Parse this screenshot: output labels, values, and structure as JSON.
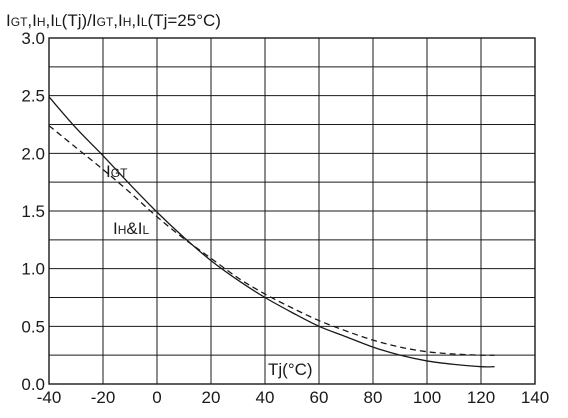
{
  "chart_data": {
    "type": "line",
    "ylabel_parts": [
      {
        "t": "I",
        "sub": false
      },
      {
        "t": "GT",
        "sub": true
      },
      {
        "t": ",I",
        "sub": false
      },
      {
        "t": "H",
        "sub": true
      },
      {
        "t": ",I",
        "sub": false
      },
      {
        "t": "L",
        "sub": true
      },
      {
        "t": "(Tj)/I",
        "sub": false
      },
      {
        "t": "GT",
        "sub": true
      },
      {
        "t": ",I",
        "sub": false
      },
      {
        "t": "H",
        "sub": true
      },
      {
        "t": ",I",
        "sub": false
      },
      {
        "t": "L",
        "sub": true
      },
      {
        "t": "(Tj=25°C)",
        "sub": false
      }
    ],
    "xlabel": "Tj(°C)",
    "xlim": [
      -40,
      140
    ],
    "ylim": [
      0,
      3.0
    ],
    "x_ticks": [
      "-40",
      "-20",
      "0",
      "20",
      "40",
      "60",
      "80",
      "100",
      "120",
      "140"
    ],
    "y_ticks": [
      "0.0",
      "0.5",
      "1.0",
      "1.5",
      "2.0",
      "2.5",
      "3.0"
    ],
    "x_grid_step": 20,
    "y_grid_step": 0.25,
    "grid": true,
    "series": [
      {
        "name_parts": [
          {
            "t": "I",
            "sub": false
          },
          {
            "t": "GT",
            "sub": true
          }
        ],
        "style": "solid",
        "color": "#1a1a1a",
        "x": [
          -40,
          -30,
          -20,
          -10,
          0,
          10,
          20,
          30,
          40,
          50,
          60,
          70,
          80,
          90,
          100,
          110,
          120,
          125
        ],
        "y": [
          2.49,
          2.22,
          1.98,
          1.73,
          1.49,
          1.27,
          1.07,
          0.9,
          0.75,
          0.62,
          0.5,
          0.41,
          0.32,
          0.25,
          0.2,
          0.17,
          0.15,
          0.15
        ]
      },
      {
        "name_parts": [
          {
            "t": "I",
            "sub": false
          },
          {
            "t": "H",
            "sub": true
          },
          {
            "t": "&I",
            "sub": false
          },
          {
            "t": "L",
            "sub": true
          }
        ],
        "style": "dashed",
        "color": "#1a1a1a",
        "x": [
          -40,
          -30,
          -20,
          -10,
          0,
          10,
          20,
          30,
          40,
          50,
          60,
          70,
          80,
          90,
          100,
          110,
          120,
          125
        ],
        "y": [
          2.24,
          2.05,
          1.86,
          1.66,
          1.45,
          1.26,
          1.09,
          0.92,
          0.78,
          0.66,
          0.55,
          0.46,
          0.38,
          0.32,
          0.28,
          0.26,
          0.25,
          0.25
        ]
      }
    ]
  }
}
